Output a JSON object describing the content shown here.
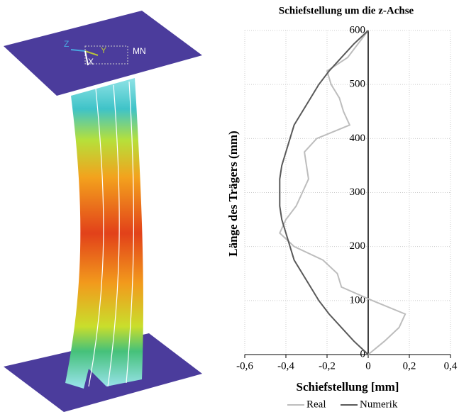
{
  "model_view": {
    "labels": [
      "Z",
      "Y",
      "X",
      "MN"
    ]
  },
  "chart_data": {
    "type": "line",
    "title": "Schiefstellung um die z-Achse",
    "x_label": "Schiefstellung [mm]",
    "y_label": "Länge des Trägers (mm)",
    "y": [
      0,
      25,
      50,
      75,
      100,
      125,
      150,
      175,
      200,
      225,
      250,
      275,
      300,
      325,
      350,
      375,
      400,
      425,
      450,
      475,
      500,
      525,
      550,
      575,
      600
    ],
    "series": [
      {
        "name": "Real",
        "color": "#bdbdbd",
        "values": [
          0,
          0.08,
          0.15,
          0.18,
          0.02,
          -0.13,
          -0.15,
          -0.22,
          -0.36,
          -0.43,
          -0.4,
          -0.35,
          -0.32,
          -0.29,
          -0.3,
          -0.31,
          -0.25,
          -0.09,
          -0.12,
          -0.14,
          -0.18,
          -0.2,
          -0.1,
          -0.05,
          0
        ]
      },
      {
        "name": "Numerik",
        "color": "#595959",
        "values": [
          0,
          -0.07,
          -0.13,
          -0.19,
          -0.24,
          -0.28,
          -0.32,
          -0.36,
          -0.38,
          -0.4,
          -0.42,
          -0.43,
          -0.43,
          -0.43,
          -0.42,
          -0.4,
          -0.38,
          -0.36,
          -0.32,
          -0.28,
          -0.24,
          -0.19,
          -0.13,
          -0.07,
          0
        ]
      }
    ],
    "xlim": [
      -0.6,
      0.4
    ],
    "xticks": [
      {
        "value": -0.6,
        "label": "-0,6"
      },
      {
        "value": -0.4,
        "label": "-0,4"
      },
      {
        "value": -0.2,
        "label": "-0,2"
      },
      0,
      {
        "value": 0.2,
        "label": "0,2"
      },
      {
        "value": 0.4,
        "label": "0,4"
      }
    ],
    "ylim": [
      0,
      600
    ],
    "yticks": [
      0,
      100,
      200,
      300,
      400,
      500,
      600
    ],
    "grid": true,
    "legend": "bottom"
  }
}
